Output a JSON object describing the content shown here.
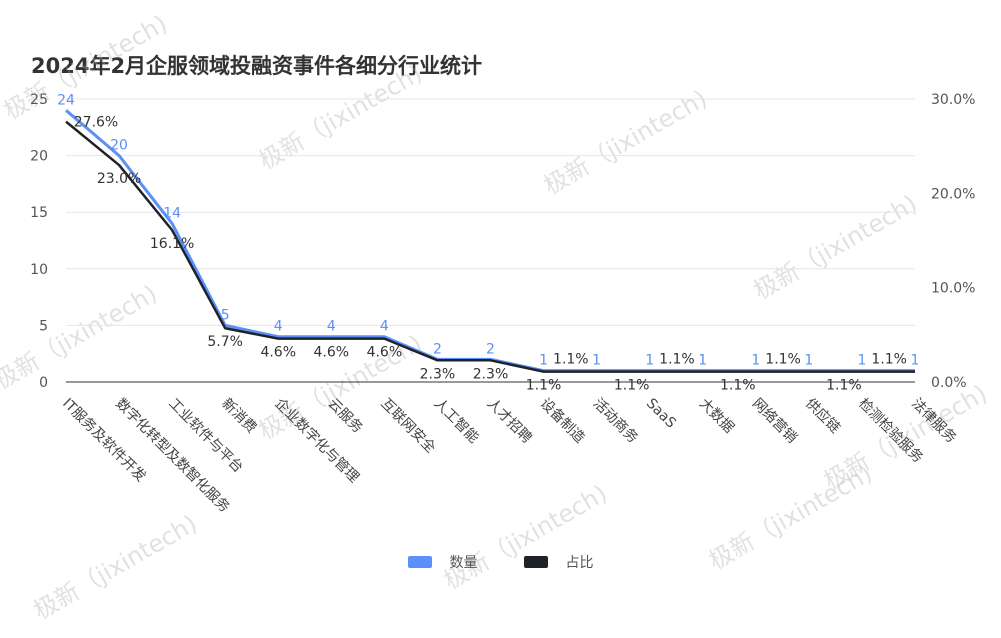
{
  "title": "2024年2月企服领域投融资事件各细分行业统计",
  "watermark": "极新（jixintech)",
  "colors": {
    "count": "#5b8ff9",
    "percent": "#1f2329",
    "grid": "#e6e6e6",
    "axis": "#333333"
  },
  "legend": [
    {
      "name": "数量",
      "color": "#5b8ff9"
    },
    {
      "name": "占比",
      "color": "#1f2329"
    }
  ],
  "chart_data": {
    "type": "line",
    "title": "2024年2月企服领域投融资事件各细分行业统计",
    "categories": [
      "IT服务及软件开发",
      "数字化转型及数智化服务",
      "工业软件与平台",
      "新消费",
      "企业数字化与管理",
      "云服务",
      "互联网安全",
      "人工智能",
      "人才招聘",
      "设备制造",
      "活动商务",
      "SaaS",
      "大数据",
      "网络营销",
      "供应链",
      "检测检验服务",
      "法律服务"
    ],
    "series": [
      {
        "name": "数量",
        "axis": "left",
        "values": [
          24,
          20,
          14,
          5,
          4,
          4,
          4,
          2,
          2,
          1,
          1,
          1,
          1,
          1,
          1,
          1,
          1
        ],
        "labels": [
          "24",
          "20",
          "14",
          "5",
          "4",
          "4",
          "4",
          "2",
          "2",
          "1",
          "1",
          "1",
          "1",
          "1",
          "1",
          "1",
          "1"
        ]
      },
      {
        "name": "占比",
        "axis": "right",
        "values": [
          27.6,
          23.0,
          16.1,
          5.7,
          4.6,
          4.6,
          4.6,
          2.3,
          2.3,
          1.1,
          1.1,
          1.1,
          1.1,
          1.1,
          1.1,
          1.1,
          1.1
        ],
        "labels": [
          "27.6%",
          "23.0%",
          "16.1%",
          "5.7%",
          "4.6%",
          "4.6%",
          "4.6%",
          "2.3%",
          "2.3%",
          "1.1%",
          "1.1%",
          "1.1%",
          "1.1%",
          "1.1%",
          "1.1%",
          "1.1%",
          "1.1%"
        ]
      }
    ],
    "y_left": {
      "ylim": [
        0,
        25
      ],
      "ticks": [
        "0",
        "5",
        "10",
        "15",
        "20",
        "25"
      ]
    },
    "y_right": {
      "ylim": [
        0,
        30
      ],
      "ticks": [
        "0.0%",
        "10.0%",
        "20.0%",
        "30.0%"
      ]
    },
    "grid": true,
    "legend_position": "bottom-center"
  }
}
